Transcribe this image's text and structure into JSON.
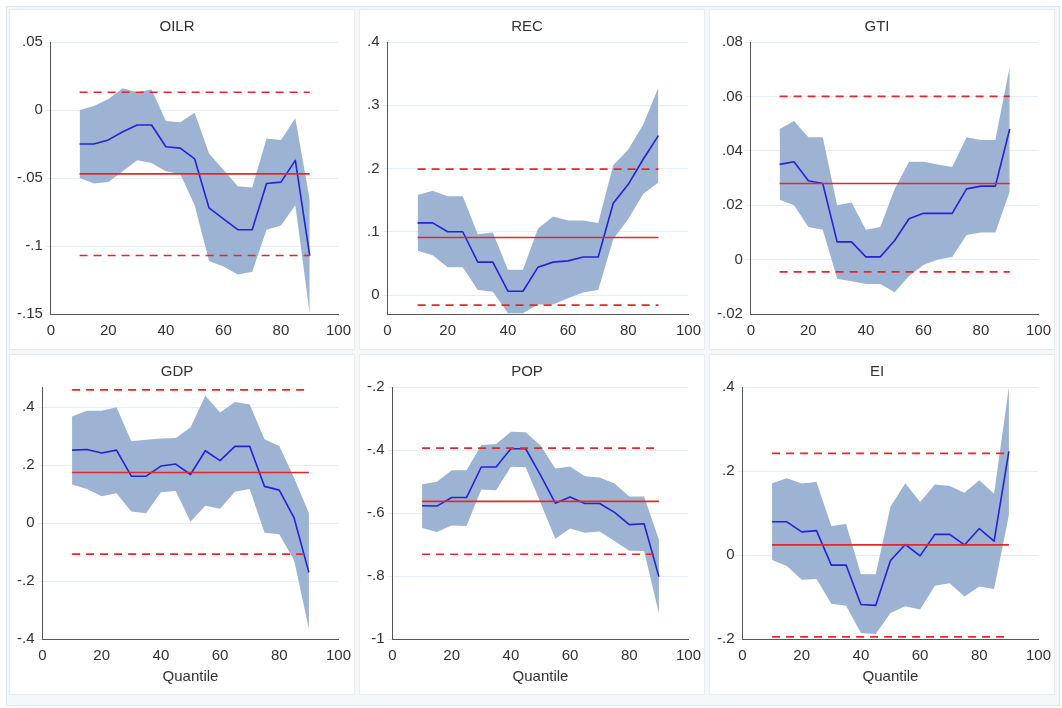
{
  "chart_data": [
    {
      "type": "line",
      "title": "OILR",
      "x": [
        10,
        15,
        20,
        25,
        30,
        35,
        40,
        45,
        50,
        55,
        60,
        65,
        70,
        75,
        80,
        85,
        90
      ],
      "series": [
        {
          "color": "#2323d8",
          "values": [
            -0.025,
            -0.025,
            -0.022,
            -0.016,
            -0.011,
            -0.011,
            -0.027,
            -0.028,
            -0.036,
            -0.072,
            -0.08,
            -0.088,
            -0.088,
            -0.054,
            -0.053,
            -0.037,
            -0.107
          ],
          "lower": [
            -0.05,
            -0.054,
            -0.053,
            -0.045,
            -0.037,
            -0.039,
            -0.045,
            -0.047,
            -0.07,
            -0.111,
            -0.115,
            -0.121,
            -0.119,
            -0.088,
            -0.085,
            -0.07,
            -0.15
          ],
          "upper": [
            0,
            0.003,
            0.008,
            0.016,
            0.013,
            0.015,
            -0.008,
            -0.009,
            -0.002,
            -0.032,
            -0.044,
            -0.056,
            -0.057,
            -0.021,
            -0.022,
            -0.006,
            -0.066
          ]
        }
      ],
      "xlim": [
        0,
        100
      ],
      "xticks": [
        0,
        20,
        40,
        60,
        80,
        100
      ],
      "ylim": [
        -0.15,
        0.05
      ],
      "yticks": [
        {
          "value": -0.15,
          "label": "-.15"
        },
        {
          "value": -0.1,
          "label": "-.1"
        },
        {
          "value": -0.05,
          "label": "-.05"
        },
        {
          "value": 0,
          "label": "0"
        },
        {
          "value": 0.05,
          "label": ".05"
        }
      ],
      "ref_lines": [
        {
          "axis": "y",
          "value": -0.047,
          "color": "#e8262a",
          "line_style": "solid"
        },
        {
          "axis": "y",
          "value": 0.013,
          "color": "#e8262a",
          "line_style": "dashed"
        },
        {
          "axis": "y",
          "value": -0.107,
          "color": "#e8262a",
          "line_style": "dashed"
        }
      ],
      "grid": "y",
      "marker": "none",
      "line_style": "solid"
    },
    {
      "type": "line",
      "title": "REC",
      "x": [
        10,
        15,
        20,
        25,
        30,
        35,
        40,
        45,
        50,
        55,
        60,
        65,
        70,
        75,
        80,
        85,
        90
      ],
      "series": [
        {
          "color": "#2323d8",
          "values": [
            0.114,
            0.114,
            0.1,
            0.1,
            0.052,
            0.052,
            0.006,
            0.006,
            0.044,
            0.052,
            0.054,
            0.06,
            0.06,
            0.145,
            0.175,
            0.215,
            0.252
          ],
          "lower": [
            0.07,
            0.063,
            0.044,
            0.044,
            0.008,
            0.005,
            -0.029,
            -0.029,
            -0.015,
            -0.015,
            -0.005,
            0.004,
            0.008,
            0.088,
            0.12,
            0.16,
            0.178
          ],
          "upper": [
            0.158,
            0.165,
            0.156,
            0.156,
            0.096,
            0.099,
            0.04,
            0.04,
            0.105,
            0.124,
            0.118,
            0.118,
            0.114,
            0.205,
            0.23,
            0.27,
            0.328
          ]
        }
      ],
      "xlim": [
        0,
        100
      ],
      "xticks": [
        0,
        20,
        40,
        60,
        80,
        100
      ],
      "ylim": [
        -0.03,
        0.4
      ],
      "yticks": [
        {
          "value": 0,
          "label": "0"
        },
        {
          "value": 0.1,
          "label": ".1"
        },
        {
          "value": 0.2,
          "label": ".2"
        },
        {
          "value": 0.3,
          "label": ".3"
        },
        {
          "value": 0.4,
          "label": ".4"
        }
      ],
      "ref_lines": [
        {
          "axis": "y",
          "value": 0.091,
          "color": "#e8262a",
          "line_style": "solid"
        },
        {
          "axis": "y",
          "value": 0.199,
          "color": "#e8262a",
          "line_style": "dashed"
        },
        {
          "axis": "y",
          "value": -0.016,
          "color": "#e8262a",
          "line_style": "dashed"
        }
      ],
      "grid": "y",
      "marker": "none",
      "line_style": "solid"
    },
    {
      "type": "line",
      "title": "GTI",
      "x": [
        10,
        15,
        20,
        25,
        30,
        35,
        40,
        45,
        50,
        55,
        60,
        65,
        70,
        75,
        80,
        85,
        90
      ],
      "series": [
        {
          "color": "#2323d8",
          "values": [
            0.035,
            0.036,
            0.029,
            0.028,
            0.0065,
            0.0065,
            0.001,
            0.001,
            0.007,
            0.015,
            0.017,
            0.017,
            0.017,
            0.026,
            0.027,
            0.027,
            0.048
          ],
          "lower": [
            0.022,
            0.02,
            0.012,
            0.011,
            -0.007,
            -0.008,
            -0.009,
            -0.009,
            -0.012,
            -0.006,
            -0.002,
            0,
            0.001,
            0.009,
            0.01,
            0.01,
            0.025
          ],
          "upper": [
            0.048,
            0.051,
            0.045,
            0.045,
            0.02,
            0.021,
            0.011,
            0.012,
            0.026,
            0.036,
            0.036,
            0.035,
            0.034,
            0.045,
            0.044,
            0.044,
            0.071
          ]
        }
      ],
      "xlim": [
        0,
        100
      ],
      "xticks": [
        0,
        20,
        40,
        60,
        80,
        100
      ],
      "ylim": [
        -0.02,
        0.08
      ],
      "yticks": [
        {
          "value": -0.02,
          "label": "-.02"
        },
        {
          "value": 0,
          "label": "0"
        },
        {
          "value": 0.02,
          "label": ".02"
        },
        {
          "value": 0.04,
          "label": ".04"
        },
        {
          "value": 0.06,
          "label": ".06"
        },
        {
          "value": 0.08,
          "label": ".08"
        }
      ],
      "ref_lines": [
        {
          "axis": "y",
          "value": 0.028,
          "color": "#e8262a",
          "line_style": "solid"
        },
        {
          "axis": "y",
          "value": 0.06,
          "color": "#e8262a",
          "line_style": "dashed"
        },
        {
          "axis": "y",
          "value": -0.0045,
          "color": "#e8262a",
          "line_style": "dashed"
        }
      ],
      "grid": "y",
      "marker": "none",
      "line_style": "solid"
    },
    {
      "type": "line",
      "title": "GDP",
      "xlabel": "Quantile",
      "x": [
        10,
        15,
        20,
        25,
        30,
        35,
        40,
        45,
        50,
        55,
        60,
        65,
        70,
        75,
        80,
        85,
        90
      ],
      "series": [
        {
          "color": "#2323d8",
          "values": [
            0.252,
            0.254,
            0.242,
            0.252,
            0.162,
            0.162,
            0.197,
            0.204,
            0.168,
            0.25,
            0.216,
            0.265,
            0.265,
            0.127,
            0.114,
            0.018,
            -0.17
          ],
          "lower": [
            0.133,
            0.118,
            0.093,
            0.103,
            0.04,
            0.034,
            0.107,
            0.111,
            0.005,
            0.06,
            0.05,
            0.108,
            0.118,
            -0.033,
            -0.038,
            -0.128,
            -0.365
          ],
          "upper": [
            0.368,
            0.388,
            0.388,
            0.4,
            0.283,
            0.288,
            0.292,
            0.294,
            0.33,
            0.44,
            0.382,
            0.418,
            0.41,
            0.29,
            0.266,
            0.157,
            0.035
          ]
        }
      ],
      "xlim": [
        0,
        100
      ],
      "xticks": [
        0,
        20,
        40,
        60,
        80,
        100
      ],
      "ylim": [
        -0.4,
        0.47
      ],
      "yticks": [
        {
          "value": -0.4,
          "label": "-.4"
        },
        {
          "value": -0.2,
          "label": "-.2"
        },
        {
          "value": 0,
          "label": "0"
        },
        {
          "value": 0.2,
          "label": ".2"
        },
        {
          "value": 0.4,
          "label": ".4"
        }
      ],
      "ref_lines": [
        {
          "axis": "y",
          "value": 0.175,
          "color": "#e8262a",
          "line_style": "solid"
        },
        {
          "axis": "y",
          "value": 0.46,
          "color": "#e8262a",
          "line_style": "dashed"
        },
        {
          "axis": "y",
          "value": -0.107,
          "color": "#e8262a",
          "line_style": "dashed"
        }
      ],
      "grid": "y",
      "marker": "none",
      "line_style": "solid"
    },
    {
      "type": "line",
      "title": "POP",
      "xlabel": "Quantile",
      "x": [
        10,
        15,
        20,
        25,
        30,
        35,
        40,
        45,
        50,
        55,
        60,
        65,
        70,
        75,
        80,
        85,
        90
      ],
      "series": [
        {
          "color": "#2323d8",
          "values": [
            -0.577,
            -0.578,
            -0.551,
            -0.551,
            -0.454,
            -0.454,
            -0.396,
            -0.396,
            -0.48,
            -0.569,
            -0.549,
            -0.57,
            -0.57,
            -0.598,
            -0.637,
            -0.634,
            -0.802
          ],
          "lower": [
            -0.648,
            -0.66,
            -0.64,
            -0.641,
            -0.525,
            -0.528,
            -0.453,
            -0.455,
            -0.567,
            -0.682,
            -0.649,
            -0.663,
            -0.659,
            -0.689,
            -0.72,
            -0.721,
            -0.919
          ],
          "upper": [
            -0.509,
            -0.501,
            -0.464,
            -0.464,
            -0.384,
            -0.381,
            -0.342,
            -0.344,
            -0.386,
            -0.459,
            -0.452,
            -0.483,
            -0.487,
            -0.506,
            -0.548,
            -0.548,
            -0.684
          ]
        }
      ],
      "xlim": [
        0,
        100
      ],
      "xticks": [
        0,
        20,
        40,
        60,
        80,
        100
      ],
      "ylim": [
        -1,
        -0.2
      ],
      "yticks": [
        {
          "value": -1,
          "label": "-1"
        },
        {
          "value": -0.8,
          "label": "-.8"
        },
        {
          "value": -0.6,
          "label": "-.6"
        },
        {
          "value": -0.4,
          "label": "-.4"
        },
        {
          "value": -0.2,
          "label": "-.2"
        }
      ],
      "ref_lines": [
        {
          "axis": "y",
          "value": -0.563,
          "color": "#e8262a",
          "line_style": "solid"
        },
        {
          "axis": "y",
          "value": -0.394,
          "color": "#e8262a",
          "line_style": "dashed"
        },
        {
          "axis": "y",
          "value": -0.731,
          "color": "#e8262a",
          "line_style": "dashed"
        }
      ],
      "grid": "y",
      "marker": "none",
      "line_style": "solid"
    },
    {
      "type": "line",
      "title": "EI",
      "xlabel": "Quantile",
      "x": [
        10,
        15,
        20,
        25,
        30,
        35,
        40,
        45,
        50,
        55,
        60,
        65,
        70,
        75,
        80,
        85,
        90
      ],
      "series": [
        {
          "color": "#2323d8",
          "values": [
            0.079,
            0.079,
            0.055,
            0.058,
            -0.024,
            -0.024,
            -0.118,
            -0.12,
            -0.013,
            0.025,
            -0.002,
            0.049,
            0.049,
            0.024,
            0.063,
            0.033,
            0.247
          ],
          "lower": [
            -0.012,
            -0.026,
            -0.059,
            -0.057,
            -0.116,
            -0.121,
            -0.186,
            -0.188,
            -0.138,
            -0.122,
            -0.13,
            -0.073,
            -0.067,
            -0.099,
            -0.075,
            -0.081,
            0.095
          ],
          "upper": [
            0.171,
            0.183,
            0.17,
            0.174,
            0.069,
            0.074,
            -0.046,
            -0.046,
            0.115,
            0.171,
            0.126,
            0.168,
            0.164,
            0.148,
            0.178,
            0.146,
            0.4
          ]
        }
      ],
      "xlim": [
        0,
        100
      ],
      "xticks": [
        0,
        20,
        40,
        60,
        80,
        100
      ],
      "ylim": [
        -0.2,
        0.4
      ],
      "yticks": [
        {
          "value": -0.2,
          "label": "-.2"
        },
        {
          "value": 0,
          "label": "0"
        },
        {
          "value": 0.2,
          "label": ".2"
        },
        {
          "value": 0.4,
          "label": ".4"
        }
      ],
      "ref_lines": [
        {
          "axis": "y",
          "value": 0.024,
          "color": "#e8262a",
          "line_style": "solid"
        },
        {
          "axis": "y",
          "value": 0.242,
          "color": "#e8262a",
          "line_style": "dashed"
        },
        {
          "axis": "y",
          "value": -0.195,
          "color": "#e8262a",
          "line_style": "dashed"
        }
      ],
      "grid": "y",
      "marker": "none",
      "line_style": "solid"
    }
  ]
}
